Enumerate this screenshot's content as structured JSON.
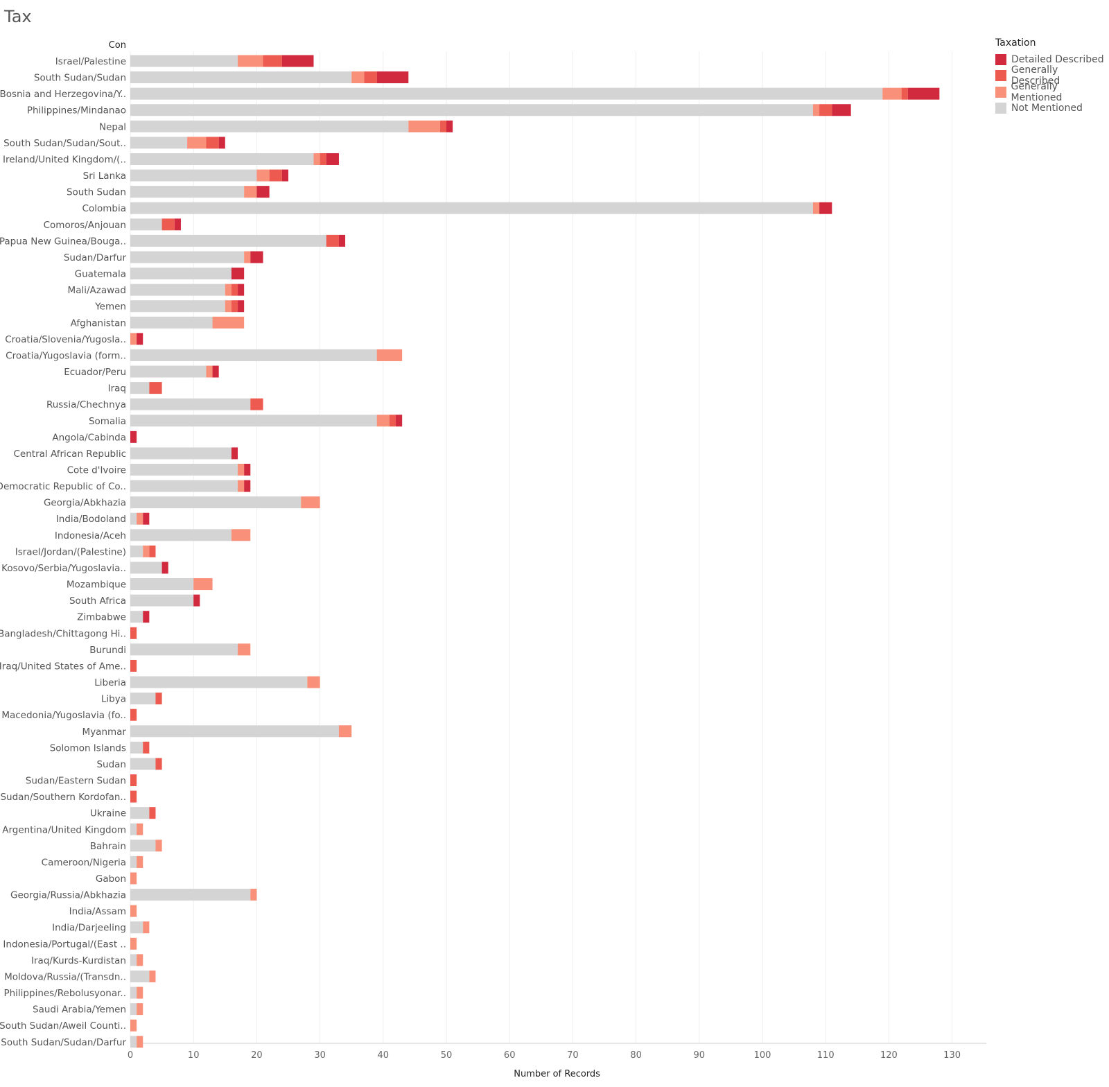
{
  "title": "Tax",
  "dimension_header": "Con",
  "legend": {
    "title": "Taxation",
    "items": [
      {
        "label": "Detailed Described",
        "color": "#d12a3f"
      },
      {
        "label": "Generally Described",
        "color": "#ec5a50"
      },
      {
        "label": "Generally Mentioned",
        "color": "#f8907a"
      },
      {
        "label": "Not Mentioned",
        "color": "#d4d4d4"
      }
    ]
  },
  "chart_data": {
    "type": "bar",
    "orientation": "horizontal",
    "stacked": true,
    "xlabel": "Number of Records",
    "ylabel": "Con",
    "xlim": [
      0,
      135
    ],
    "xticks": [
      0,
      10,
      20,
      30,
      40,
      50,
      60,
      70,
      80,
      90,
      100,
      110,
      120,
      130
    ],
    "grid": true,
    "legend_position": "top-right",
    "categories": [
      "Israel/Palestine",
      "South Sudan/Sudan",
      "Bosnia and Herzegovina/Y..",
      "Philippines/Mindanao",
      "Nepal",
      "South Sudan/Sudan/Sout..",
      "Ireland/United Kingdom/(..",
      "Sri Lanka",
      "South Sudan",
      "Colombia",
      "Comoros/Anjouan",
      "Papua New Guinea/Bouga..",
      "Sudan/Darfur",
      "Guatemala",
      "Mali/Azawad",
      "Yemen",
      "Afghanistan",
      "Croatia/Slovenia/Yugosla..",
      "Croatia/Yugoslavia (form..",
      "Ecuador/Peru",
      "Iraq",
      "Russia/Chechnya",
      "Somalia",
      "Angola/Cabinda",
      "Central African Republic",
      "Cote d'Ivoire",
      "Democratic Republic of Co..",
      "Georgia/Abkhazia",
      "India/Bodoland",
      "Indonesia/Aceh",
      "Israel/Jordan/(Palestine)",
      "Kosovo/Serbia/Yugoslavia..",
      "Mozambique",
      "South Africa",
      "Zimbabwe",
      "Bangladesh/Chittagong Hi..",
      "Burundi",
      "Iraq/United States of Ame..",
      "Liberia",
      "Libya",
      "Macedonia/Yugoslavia (fo..",
      "Myanmar",
      "Solomon Islands",
      "Sudan",
      "Sudan/Eastern Sudan",
      "Sudan/Southern Kordofan..",
      "Ukraine",
      "Argentina/United Kingdom",
      "Bahrain",
      "Cameroon/Nigeria",
      "Gabon",
      "Georgia/Russia/Abkhazia",
      "India/Assam",
      "India/Darjeeling",
      "Indonesia/Portugal/(East ..",
      "Iraq/Kurds-Kurdistan",
      "Moldova/Russia/(Transdn..",
      "Philippines/Rebolusyonar..",
      "Saudi Arabia/Yemen",
      "South Sudan/Aweil Counti..",
      "South Sudan/Sudan/Darfur"
    ],
    "series": [
      {
        "name": "Not Mentioned",
        "values": [
          17,
          35,
          119,
          108,
          44,
          9,
          29,
          20,
          18,
          108,
          5,
          31,
          18,
          16,
          15,
          15,
          13,
          0,
          39,
          12,
          3,
          19,
          39,
          0,
          16,
          17,
          17,
          27,
          1,
          16,
          2,
          5,
          10,
          10,
          2,
          0,
          17,
          0,
          28,
          4,
          0,
          33,
          2,
          4,
          0,
          0,
          3,
          1,
          4,
          1,
          0,
          19,
          0,
          2,
          0,
          1,
          3,
          1,
          1,
          0,
          1
        ]
      },
      {
        "name": "Generally Mentioned",
        "values": [
          4,
          2,
          3,
          1,
          5,
          3,
          1,
          2,
          2,
          1,
          0,
          0,
          1,
          0,
          1,
          1,
          5,
          1,
          4,
          1,
          0,
          0,
          2,
          0,
          0,
          1,
          1,
          3,
          1,
          3,
          1,
          0,
          3,
          0,
          0,
          0,
          2,
          0,
          2,
          0,
          0,
          2,
          0,
          0,
          0,
          0,
          0,
          1,
          1,
          1,
          1,
          1,
          1,
          1,
          1,
          1,
          1,
          1,
          1,
          1,
          1
        ]
      },
      {
        "name": "Generally Described",
        "values": [
          3,
          2,
          1,
          2,
          1,
          2,
          1,
          2,
          0,
          0,
          2,
          2,
          0,
          0,
          1,
          1,
          0,
          0,
          0,
          0,
          2,
          2,
          1,
          0,
          0,
          0,
          0,
          0,
          0,
          0,
          1,
          0,
          0,
          0,
          0,
          1,
          0,
          1,
          0,
          1,
          1,
          0,
          1,
          1,
          1,
          1,
          1,
          0,
          0,
          0,
          0,
          0,
          0,
          0,
          0,
          0,
          0,
          0,
          0,
          0,
          0
        ]
      },
      {
        "name": "Detailed Described",
        "values": [
          5,
          5,
          5,
          3,
          1,
          1,
          2,
          1,
          2,
          2,
          1,
          1,
          2,
          2,
          1,
          1,
          0,
          1,
          0,
          1,
          0,
          0,
          1,
          1,
          1,
          1,
          1,
          0,
          1,
          0,
          0,
          1,
          0,
          1,
          1,
          0,
          0,
          0,
          0,
          0,
          0,
          0,
          0,
          0,
          0,
          0,
          0,
          0,
          0,
          0,
          0,
          0,
          0,
          0,
          0,
          0,
          0,
          0,
          0,
          0,
          0
        ]
      }
    ]
  }
}
